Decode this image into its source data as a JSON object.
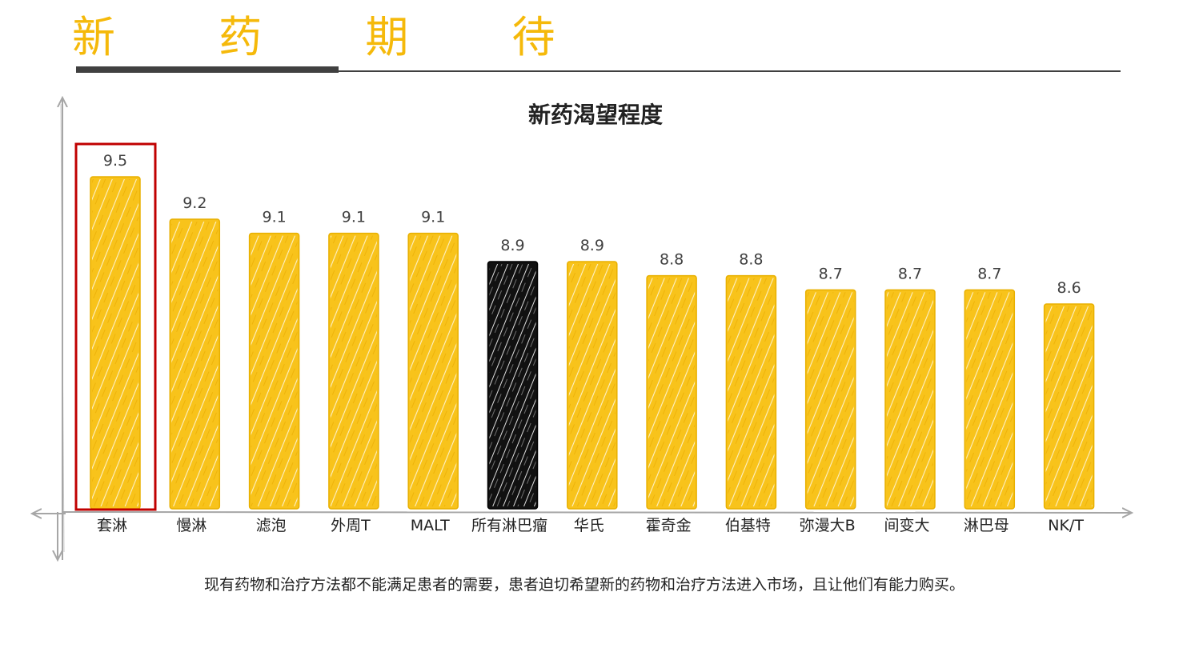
{
  "header": {
    "title": "新 药 期 待"
  },
  "chart_data": {
    "type": "bar",
    "title": "新药渴望程度",
    "categories": [
      "套淋",
      "慢淋",
      "滤泡",
      "外周T",
      "MALT",
      "所有淋巴瘤",
      "华氏",
      "霍奇金",
      "伯基特",
      "弥漫大B",
      "间变大",
      "淋巴母",
      "NK/T"
    ],
    "values": [
      9.5,
      9.2,
      9.1,
      9.1,
      9.1,
      8.9,
      8.9,
      8.8,
      8.8,
      8.7,
      8.7,
      8.7,
      8.6
    ],
    "value_labels": [
      "9.5",
      "9.2",
      "9.1",
      "9.1",
      "9.1",
      "8.9",
      "8.9",
      "8.8",
      "8.8",
      "8.7",
      "8.7",
      "8.7",
      "8.6"
    ],
    "highlight_black_index": 5,
    "highlight_box_index": 0,
    "colors": {
      "bar": "#f8c31b",
      "highlight_bar": "#111111",
      "box": "#c00000",
      "axis": "#a6a6a6"
    },
    "grid": false,
    "legend": "none"
  },
  "caption": "现有药物和治疗方法都不能满足患者的需要，患者迫切希望新的药物和治疗方法进入市场，且让他们有能力购买。"
}
